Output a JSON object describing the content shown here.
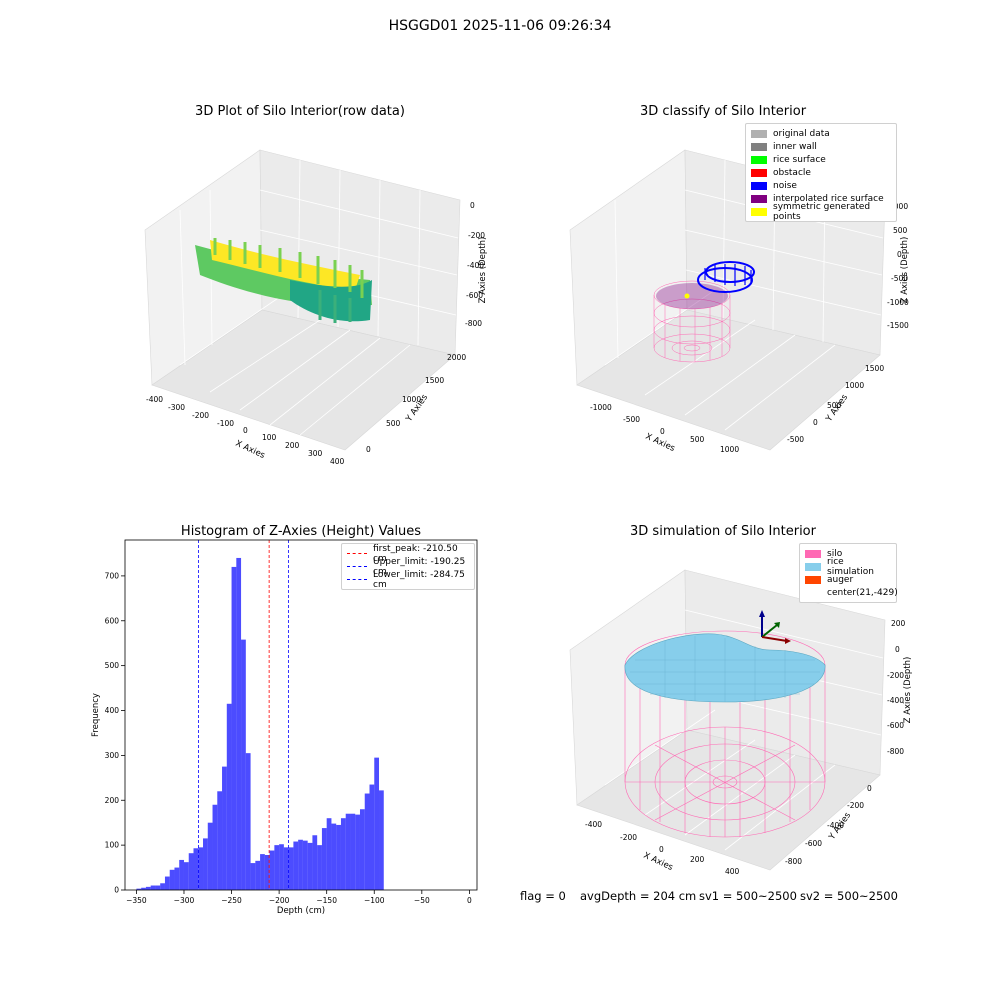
{
  "suptitle": "HSGGD01 2025-11-06 09:26:34",
  "plot1": {
    "title": "3D Plot of Silo Interior(row data)",
    "xlabel": "X Axies",
    "ylabel": "Y Axies",
    "zlabel": "Z Axies (Depth)",
    "xticks": [
      "-400",
      "-300",
      "-200",
      "-100",
      "0",
      "100",
      "200",
      "300",
      "400"
    ],
    "yticks": [
      "0",
      "500",
      "1000",
      "1500",
      "2000"
    ],
    "zticks": [
      "0",
      "-200",
      "-400",
      "-600",
      "-800"
    ],
    "colormap": [
      "#2a9d8f",
      "#21a685",
      "#5ec962",
      "#addc30",
      "#fde725"
    ]
  },
  "plot2": {
    "title": "3D classify of Silo Interior",
    "xlabel": "X Axies",
    "ylabel": "Y Axies",
    "zlabel": "Z Axies (Depth)",
    "xticks": [
      "-1000",
      "-500",
      "0",
      "500",
      "1000"
    ],
    "yticks": [
      "-500",
      "0",
      "500",
      "1000",
      "1500"
    ],
    "zticks": [
      "1000",
      "500",
      "0",
      "-500",
      "-1000",
      "-1500"
    ],
    "legend": [
      {
        "label": "original data",
        "color": "#b0b0b0"
      },
      {
        "label": "inner wall",
        "color": "#808080"
      },
      {
        "label": "rice surface",
        "color": "#00ff00"
      },
      {
        "label": "obstacle",
        "color": "#ff0000"
      },
      {
        "label": "noise",
        "color": "#0000ff"
      },
      {
        "label": "interpolated rice surface",
        "color": "#800080"
      },
      {
        "label": "symmetric generated points",
        "color": "#ffff00"
      }
    ]
  },
  "plot3": {
    "title": "Histogram of Z-Axies (Height) Values",
    "xlabel": "Depth (cm)",
    "ylabel": "Frequency",
    "legend": [
      {
        "label": "first_peak: -210.50 cm",
        "color": "#ff0000"
      },
      {
        "label": "Upper_limit: -190.25 cm",
        "color": "#0000ff"
      },
      {
        "label": "Lower_limit: -284.75 cm",
        "color": "#0000ff"
      }
    ]
  },
  "plot4": {
    "title": "3D simulation of Silo Interior",
    "xlabel": "X Axies",
    "ylabel": "Y Axies",
    "zlabel": "Z Axies (Depth)",
    "xticks": [
      "-400",
      "-200",
      "0",
      "200",
      "400"
    ],
    "yticks": [
      "0",
      "-200",
      "-400",
      "-600",
      "-800"
    ],
    "zticks": [
      "200",
      "0",
      "-200",
      "-400",
      "-600",
      "-800"
    ],
    "legend": [
      {
        "label": "silo",
        "color": "#ff69b4"
      },
      {
        "label": "rice simulation",
        "color": "#87ceeb"
      },
      {
        "label": "auger",
        "color": "#ff4500"
      },
      {
        "label": "center(21,-429)",
        "color": ""
      }
    ]
  },
  "footer": {
    "flag": "flag = 0",
    "avg": "avgDepth = 204 cm",
    "sv1": "sv1 = 500~2500",
    "sv2": "sv2 = 500~2500"
  },
  "chart_data": {
    "type": "bar",
    "title": "Histogram of Z-Axies (Height) Values",
    "xlabel": "Depth (cm)",
    "ylabel": "Frequency",
    "xlim": [
      -362,
      8
    ],
    "ylim": [
      0,
      780
    ],
    "xticks": [
      -350,
      -300,
      -250,
      -200,
      -150,
      -100,
      -50,
      0
    ],
    "yticks": [
      0,
      100,
      200,
      300,
      400,
      500,
      600,
      700
    ],
    "bin_width": 5,
    "bins_start": [
      -350,
      -345,
      -340,
      -335,
      -330,
      -325,
      -320,
      -315,
      -310,
      -305,
      -300,
      -295,
      -290,
      -285,
      -280,
      -275,
      -270,
      -265,
      -260,
      -255,
      -250,
      -245,
      -240,
      -235,
      -230,
      -225,
      -220,
      -215,
      -210,
      -205,
      -200,
      -195,
      -190,
      -185,
      -180,
      -175,
      -170,
      -165,
      -160,
      -155,
      -150,
      -145,
      -140,
      -135,
      -130,
      -125,
      -120,
      -115,
      -110,
      -105,
      -100,
      -95,
      -90,
      -85,
      -80,
      -75,
      -70,
      -65,
      -60,
      -55,
      -50,
      -45,
      -40,
      -35,
      -30,
      -25,
      -20,
      -15,
      -10
    ],
    "values": [
      3,
      5,
      7,
      10,
      10,
      15,
      30,
      45,
      50,
      67,
      62,
      82,
      93,
      95,
      115,
      150,
      190,
      220,
      275,
      415,
      720,
      740,
      558,
      305,
      60,
      65,
      80,
      78,
      88,
      100,
      102,
      95,
      95,
      108,
      112,
      110,
      105,
      122,
      100,
      138,
      160,
      148,
      145,
      160,
      170,
      170,
      168,
      180,
      215,
      235,
      295,
      222,
      0,
      0,
      0,
      0,
      0,
      0,
      0,
      0,
      0,
      0,
      0,
      0,
      0,
      0,
      0,
      0,
      0
    ],
    "vlines": [
      {
        "x": -210.5,
        "color": "#ff0000",
        "label": "first_peak: -210.50 cm"
      },
      {
        "x": -190.25,
        "color": "#0000ff",
        "label": "Upper_limit: -190.25 cm"
      },
      {
        "x": -284.75,
        "color": "#0000ff",
        "label": "Lower_limit: -284.75 cm"
      }
    ],
    "bar_color": "#0000ff",
    "legend_position": "top-right"
  }
}
